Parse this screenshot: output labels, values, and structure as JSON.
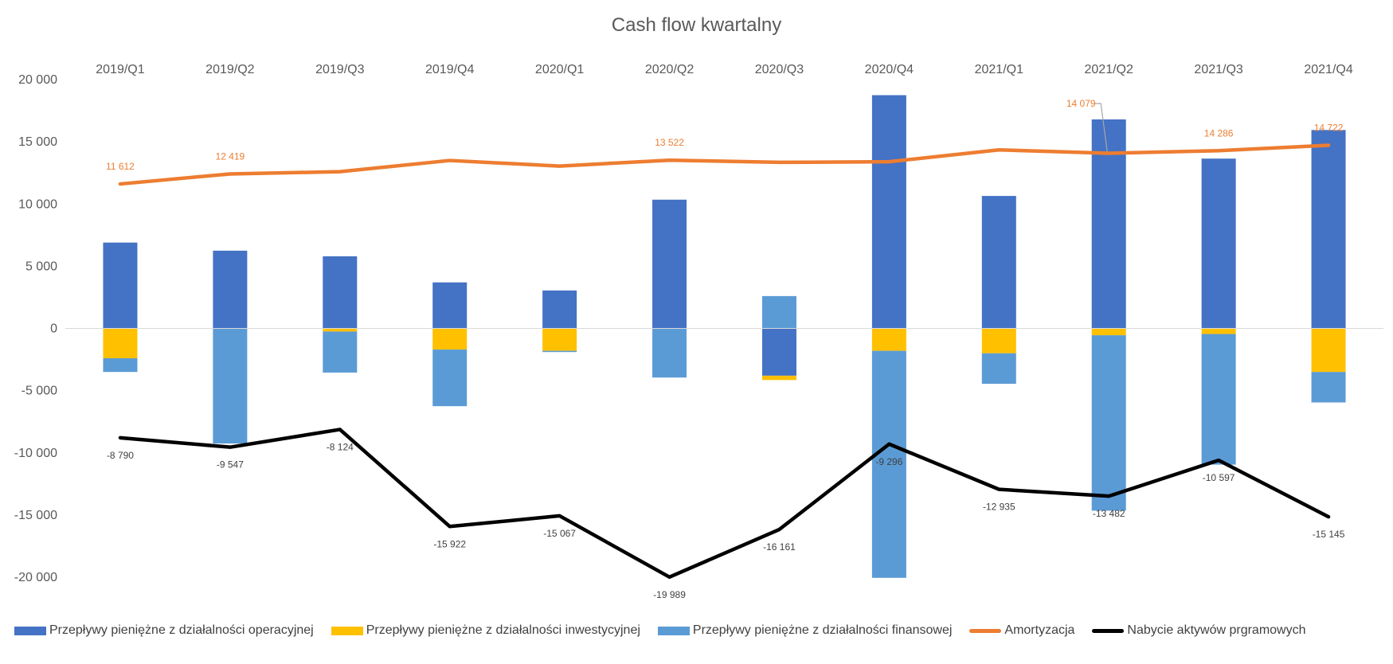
{
  "chart_data": {
    "type": "bar",
    "title": "Cash flow kwartalny",
    "categories": [
      "2019/Q1",
      "2019/Q2",
      "2019/Q3",
      "2019/Q4",
      "2020/Q1",
      "2020/Q2",
      "2020/Q3",
      "2020/Q4",
      "2021/Q1",
      "2021/Q2",
      "2021/Q3",
      "2021/Q4"
    ],
    "ylim": [
      -20000,
      20000
    ],
    "yticks": [
      20000,
      15000,
      10000,
      5000,
      0,
      -5000,
      -10000,
      -15000,
      -20000
    ],
    "ytick_labels": [
      "20 000",
      "15 000",
      "10 000",
      "5 000",
      "0",
      "-5 000",
      "-10 000",
      "-15 000",
      "-20 000"
    ],
    "grid": false,
    "legend_position": "bottom",
    "series": [
      {
        "name": "Przepływy pieniężne z działalności operacyjnej",
        "kind": "stacked-bar",
        "color": "#4472C4",
        "values": [
          6900,
          6250,
          5800,
          3700,
          3050,
          10350,
          -3800,
          18750,
          10650,
          16800,
          13650,
          15950
        ]
      },
      {
        "name": "Przepływy pieniężne z działalności inwestycyjnej",
        "kind": "stacked-bar",
        "color": "#FFC000",
        "values": [
          -2400,
          0,
          -250,
          -1700,
          -1800,
          0,
          -350,
          -1800,
          -2000,
          -550,
          -450,
          -3500
        ]
      },
      {
        "name": "Przepływy pieniężne z działalności finansowej",
        "kind": "stacked-bar",
        "color": "#5B9BD5",
        "values": [
          -1100,
          -9250,
          -3300,
          -4550,
          -100,
          -3950,
          2600,
          -18250,
          -2450,
          -14100,
          -10500,
          -2450
        ]
      },
      {
        "name": "Amortyzacja",
        "kind": "line",
        "color": "#ED7D31",
        "values": [
          11612,
          12419,
          12600,
          13500,
          13050,
          13522,
          13350,
          13400,
          14350,
          14079,
          14286,
          14722
        ],
        "labels": [
          "11 612",
          "12 419",
          "",
          "",
          "",
          "13 522",
          "",
          "",
          "",
          "14 079",
          "14 286",
          "14 722"
        ]
      },
      {
        "name": "Nabycie aktywów prgramowych",
        "kind": "line",
        "color": "#000000",
        "values": [
          -8790,
          -9547,
          -8124,
          -15922,
          -15067,
          -19989,
          -16161,
          -9296,
          -12935,
          -13482,
          -10597,
          -15145
        ],
        "labels": [
          "-8 790",
          "-9 547",
          "-8 124",
          "-15 922",
          "-15 067",
          "-19 989",
          "-16 161",
          "-9 296",
          "-12 935",
          "-13 482",
          "-10 597",
          "-15 145"
        ]
      }
    ]
  }
}
